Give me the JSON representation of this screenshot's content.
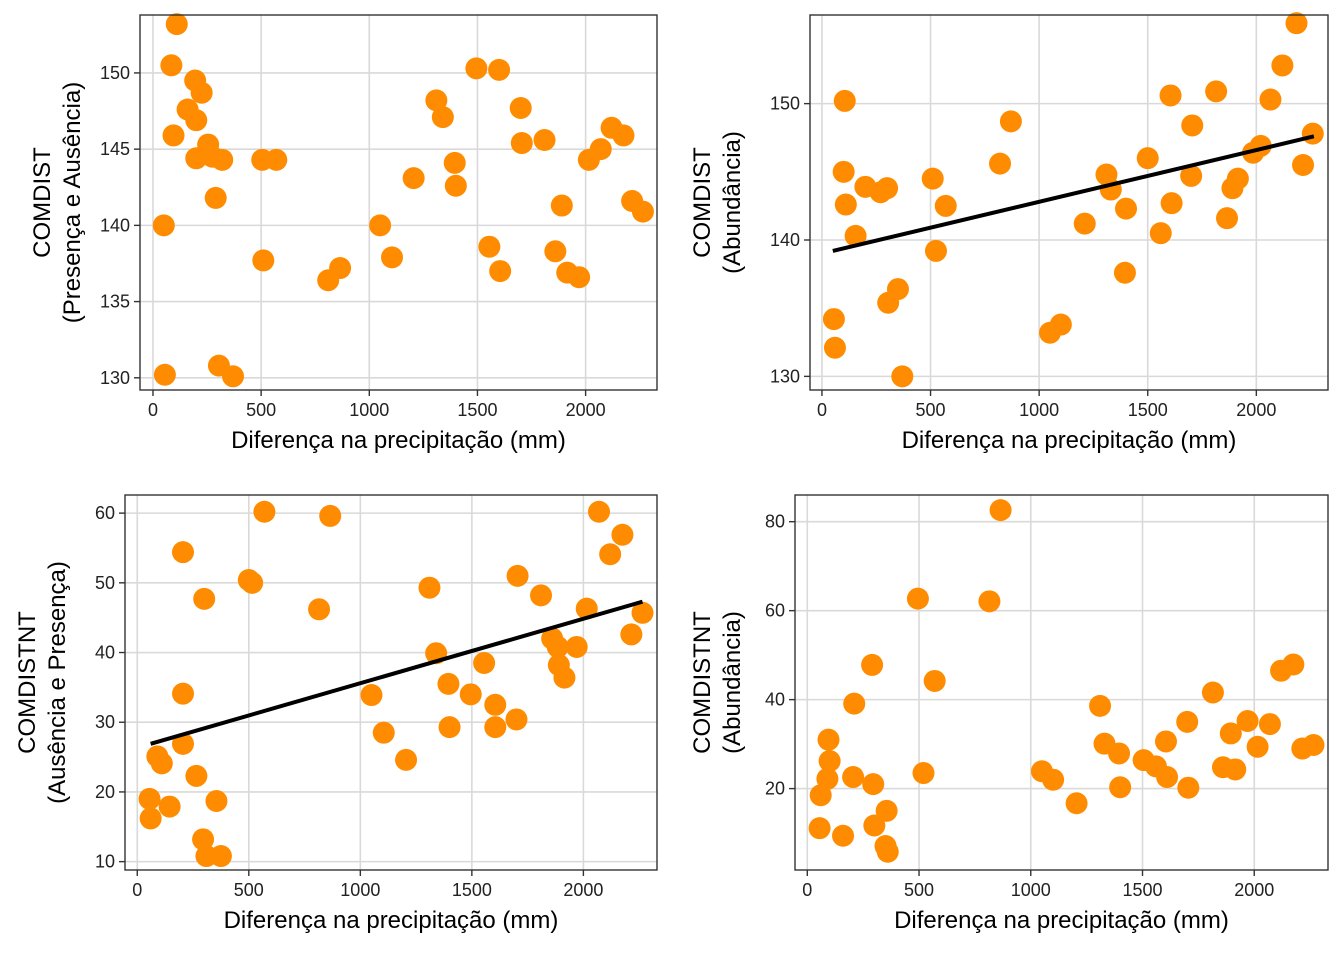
{
  "colors": {
    "point": "#FF8C00",
    "trend": "#000000",
    "grid": "#D9D9D9",
    "frame": "#333333"
  },
  "chart_data": [
    {
      "type": "scatter",
      "xlabel": "Diferença na precipitação (mm)",
      "ylabel": [
        "COMDIST",
        "(Presença e Ausência)"
      ],
      "xlim": [
        -60,
        2330
      ],
      "ylim": [
        129.2,
        153.8
      ],
      "xticks": [
        0,
        500,
        1000,
        1500,
        2000
      ],
      "yticks": [
        130,
        135,
        140,
        145,
        150
      ],
      "x": [
        110,
        85,
        195,
        95,
        160,
        225,
        255,
        200,
        275,
        200,
        320,
        290,
        50,
        55,
        305,
        370,
        510,
        505,
        570,
        810,
        865,
        1050,
        1105,
        1205,
        1310,
        1340,
        1400,
        1395,
        1495,
        1555,
        1600,
        1605,
        1700,
        1705,
        1810,
        1860,
        1890,
        1915,
        1970,
        2015,
        2070,
        2120,
        2175,
        2215,
        2265
      ],
      "y": [
        153.2,
        150.5,
        149.5,
        145.9,
        147.6,
        148.7,
        145.3,
        146.9,
        144.5,
        144.4,
        144.3,
        141.8,
        140.0,
        130.2,
        130.8,
        130.1,
        137.7,
        144.3,
        144.3,
        136.4,
        137.2,
        140.0,
        137.9,
        143.1,
        148.2,
        147.1,
        142.6,
        144.1,
        150.3,
        138.6,
        150.2,
        137.0,
        147.7,
        145.4,
        145.6,
        138.3,
        141.3,
        136.9,
        136.6,
        144.3,
        145.0,
        146.4,
        145.9,
        141.6,
        140.9
      ],
      "trend": null
    },
    {
      "type": "scatter",
      "xlabel": "Diferença na precipitação (mm)",
      "ylabel": [
        "COMDIST",
        "(Abundância)"
      ],
      "xlim": [
        -55,
        2330
      ],
      "ylim": [
        129.0,
        156.5
      ],
      "xticks": [
        0,
        500,
        1000,
        1500,
        2000
      ],
      "yticks": [
        130,
        140,
        150
      ],
      "x": [
        55,
        60,
        100,
        110,
        105,
        155,
        200,
        270,
        300,
        305,
        350,
        370,
        510,
        525,
        570,
        820,
        870,
        1050,
        1100,
        1210,
        1310,
        1330,
        1395,
        1400,
        1500,
        1560,
        1605,
        1610,
        1700,
        1705,
        1815,
        1865,
        1890,
        1915,
        1985,
        2020,
        2065,
        2120,
        2185,
        2215,
        2260
      ],
      "y": [
        134.2,
        132.1,
        145.0,
        142.6,
        150.2,
        140.3,
        143.9,
        143.5,
        143.8,
        135.4,
        136.4,
        130.0,
        144.5,
        139.2,
        142.5,
        145.6,
        148.7,
        133.2,
        133.8,
        141.2,
        144.8,
        143.7,
        137.6,
        142.3,
        146.0,
        140.5,
        150.6,
        142.7,
        144.7,
        148.4,
        150.9,
        141.6,
        143.8,
        144.5,
        146.4,
        146.9,
        150.3,
        152.8,
        155.9,
        145.5,
        147.8
      ],
      "trend": {
        "x": [
          50,
          2265
        ],
        "y": [
          139.2,
          147.6
        ]
      }
    },
    {
      "type": "scatter",
      "xlabel": "Diferença na precipitação (mm)",
      "ylabel": [
        "COMDISTNT",
        "(Ausência e Presença)"
      ],
      "xlim": [
        -55,
        2330
      ],
      "ylim": [
        8.8,
        62.6
      ],
      "xticks": [
        0,
        500,
        1000,
        1500,
        2000
      ],
      "yticks": [
        10,
        20,
        30,
        40,
        50,
        60
      ],
      "x": [
        205,
        205,
        90,
        110,
        55,
        60,
        145,
        205,
        265,
        300,
        295,
        355,
        310,
        375,
        570,
        865,
        815,
        500,
        515,
        1050,
        1105,
        1205,
        1310,
        1340,
        1395,
        1400,
        1495,
        1555,
        1605,
        1605,
        1700,
        1705,
        1810,
        1860,
        1885,
        1890,
        1915,
        1970,
        2015,
        2070,
        2120,
        2175,
        2215,
        2265
      ],
      "y": [
        54.4,
        34.1,
        25.1,
        24.1,
        19.0,
        16.2,
        17.9,
        26.9,
        22.3,
        47.7,
        13.2,
        18.7,
        10.8,
        10.8,
        60.2,
        59.6,
        46.2,
        50.4,
        50.0,
        33.9,
        28.5,
        24.6,
        49.3,
        39.9,
        35.5,
        29.3,
        34.0,
        38.5,
        32.5,
        29.3,
        30.4,
        51.0,
        48.2,
        42.0,
        40.8,
        38.2,
        36.4,
        40.8,
        46.3,
        60.2,
        54.1,
        56.9,
        42.6,
        45.7
      ],
      "trend": {
        "x": [
          60,
          2265
        ],
        "y": [
          26.9,
          47.3
        ]
      }
    },
    {
      "type": "scatter",
      "xlabel": "Diferença na precipitação (mm)",
      "ylabel": [
        "COMDISTNT",
        "(Abundância)"
      ],
      "xlim": [
        -55,
        2330
      ],
      "ylim": [
        1.7,
        86.0
      ],
      "xticks": [
        0,
        500,
        1000,
        1500,
        2000
      ],
      "yticks": [
        20,
        40,
        60,
        80
      ],
      "x": [
        95,
        100,
        90,
        60,
        55,
        160,
        205,
        210,
        290,
        295,
        300,
        350,
        355,
        360,
        495,
        520,
        570,
        815,
        865,
        1050,
        1100,
        1205,
        1310,
        1330,
        1395,
        1400,
        1505,
        1560,
        1605,
        1610,
        1700,
        1705,
        1815,
        1860,
        1895,
        1915,
        1970,
        2015,
        2070,
        2120,
        2175,
        2215,
        2265
      ],
      "y": [
        31.0,
        26.2,
        22.2,
        18.5,
        11.1,
        9.4,
        22.6,
        39.1,
        47.8,
        21.0,
        11.7,
        7.1,
        15.0,
        5.8,
        62.7,
        23.5,
        44.2,
        62.1,
        82.6,
        23.9,
        22.0,
        16.7,
        38.6,
        30.1,
        27.9,
        20.3,
        26.4,
        25.0,
        30.6,
        22.6,
        35.0,
        20.2,
        41.6,
        24.8,
        32.4,
        24.3,
        35.2,
        29.4,
        34.5,
        46.5,
        47.9,
        29.0,
        29.8
      ],
      "trend": null
    }
  ]
}
